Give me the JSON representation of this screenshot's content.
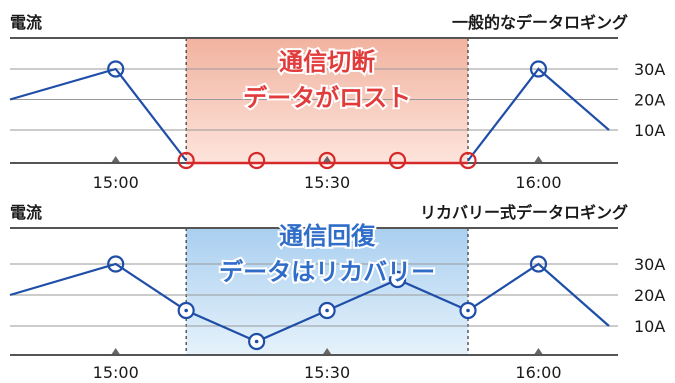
{
  "chart_data": [
    {
      "type": "line",
      "title": "一般的なデータロギング",
      "ylabel": "電流",
      "y_ticks": [
        "30A",
        "20A",
        "10A"
      ],
      "ylim": [
        0,
        35
      ],
      "x_ticks": [
        "15:00",
        "15:30",
        "16:00"
      ],
      "x": [
        "14:45",
        "15:00",
        "15:10",
        "15:20",
        "15:30",
        "15:40",
        "15:50",
        "16:00",
        "16:10"
      ],
      "values": [
        20,
        30,
        0,
        0,
        0,
        0,
        0,
        30,
        10
      ],
      "lost_points": [
        "15:10",
        "15:20",
        "15:30",
        "15:40",
        "15:50"
      ],
      "annotation": [
        "通信切断",
        "データがロスト"
      ],
      "colors": {
        "line": "#1f4ea8",
        "lost": "#d62a2a",
        "band": "#f4b7a5",
        "annotation": "#e23b3b"
      },
      "band": [
        "15:10",
        "15:50"
      ]
    },
    {
      "type": "line",
      "title": "リカバリー式データロギング",
      "ylabel": "電流",
      "y_ticks": [
        "30A",
        "20A",
        "10A"
      ],
      "ylim": [
        0,
        35
      ],
      "x_ticks": [
        "15:00",
        "15:30",
        "16:00"
      ],
      "x": [
        "14:45",
        "15:00",
        "15:10",
        "15:20",
        "15:30",
        "15:40",
        "15:50",
        "16:00",
        "16:10"
      ],
      "values": [
        20,
        30,
        15,
        5,
        15,
        25,
        15,
        30,
        10
      ],
      "annotation": [
        "通信回復",
        "データはリカバリー"
      ],
      "colors": {
        "line": "#1f4ea8",
        "band": "#bcd9f2",
        "annotation": "#2f6dc9"
      },
      "band": [
        "15:10",
        "15:50"
      ]
    }
  ]
}
